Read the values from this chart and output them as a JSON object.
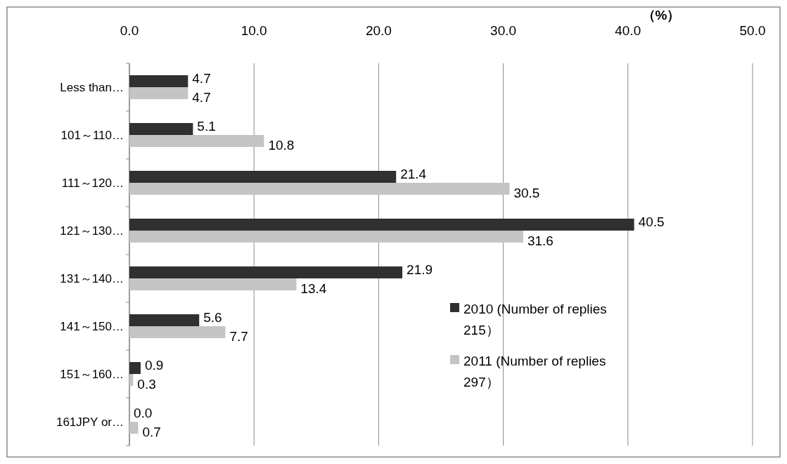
{
  "chart_data": {
    "type": "bar",
    "orientation": "horizontal",
    "categories": [
      "Less than…",
      "101～110…",
      "111～120…",
      "121～130…",
      "131～140…",
      "141～150…",
      "151～160…",
      "161JPY or…"
    ],
    "series": [
      {
        "name": "2010 (Number of replies 215）",
        "color": "#303030",
        "values": [
          4.7,
          5.1,
          21.4,
          40.5,
          21.9,
          5.6,
          0.9,
          0.0
        ],
        "value_labels": [
          "4.7",
          "5.1",
          "21.4",
          "40.5",
          "21.9",
          "5.6",
          "0.9",
          "0.0"
        ]
      },
      {
        "name": "2011 (Number of replies 297）",
        "color": "#c4c4c4",
        "values": [
          4.7,
          10.8,
          30.5,
          31.6,
          13.4,
          7.7,
          0.3,
          0.7
        ],
        "value_labels": [
          "4.7",
          "10.8",
          "30.5",
          "31.6",
          "13.4",
          "7.7",
          "0.3",
          "0.7"
        ]
      }
    ],
    "xlabel": "（%）",
    "xlim": [
      0,
      50
    ],
    "xticks": [
      {
        "value": 0,
        "label": "0.0"
      },
      {
        "value": 10,
        "label": "10.0"
      },
      {
        "value": 20,
        "label": "20.0"
      },
      {
        "value": 30,
        "label": "30.0"
      },
      {
        "value": 40,
        "label": "40.0"
      },
      {
        "value": 50,
        "label": "50.0"
      }
    ],
    "grid": "x",
    "legend": "bottom right"
  }
}
